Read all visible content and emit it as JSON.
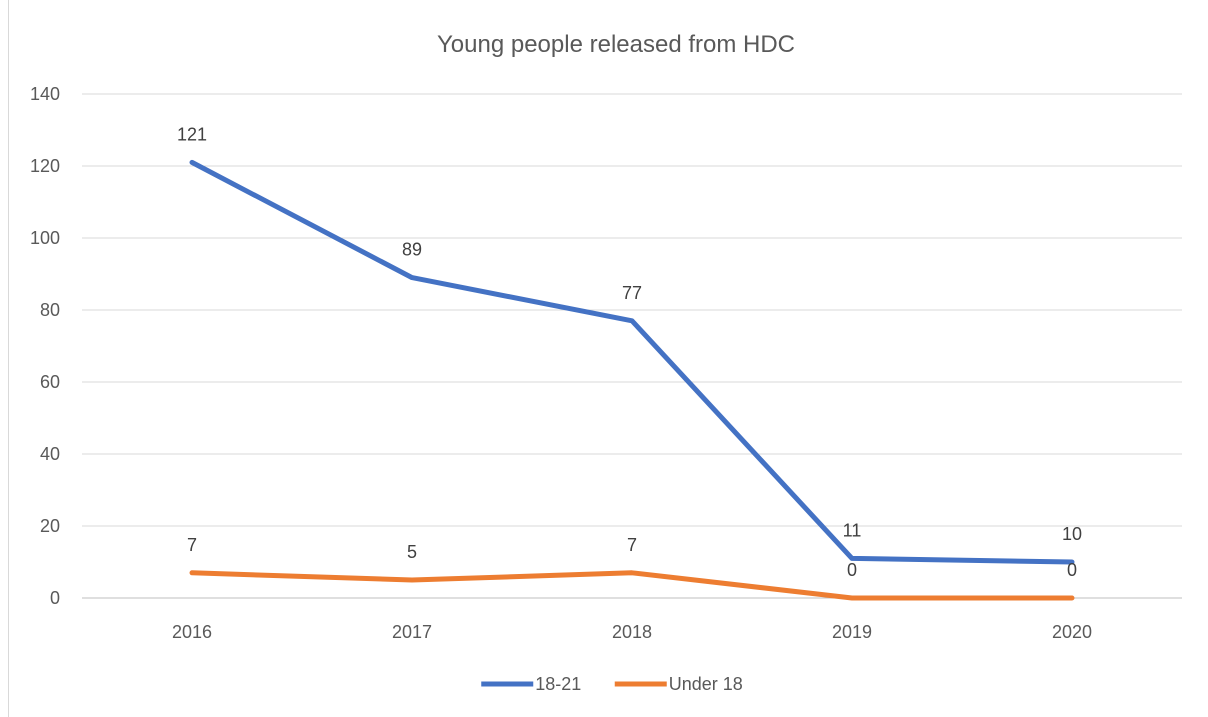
{
  "chart_data": {
    "type": "line",
    "title": "Young people released from HDC",
    "xlabel": "",
    "ylabel": "",
    "categories": [
      "2016",
      "2017",
      "2018",
      "2019",
      "2020"
    ],
    "ylim": [
      0,
      140
    ],
    "yticks": [
      0,
      20,
      40,
      60,
      80,
      100,
      120,
      140
    ],
    "grid": true,
    "legend": "bottom",
    "series": [
      {
        "name": "18-21",
        "values": [
          121,
          89,
          77,
          11,
          10
        ],
        "color": "#4472C4"
      },
      {
        "name": "Under 18",
        "values": [
          7,
          5,
          7,
          0,
          0
        ],
        "color": "#ED7D31"
      }
    ]
  }
}
